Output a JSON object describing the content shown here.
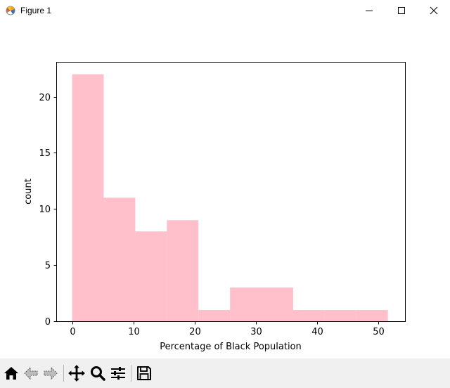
{
  "window": {
    "title": "Figure 1",
    "controls": [
      "minimize",
      "maximize",
      "close"
    ]
  },
  "toolbar": {
    "buttons": [
      {
        "name": "home",
        "icon": "home-icon"
      },
      {
        "name": "back",
        "icon": "arrow-left-icon"
      },
      {
        "name": "forward",
        "icon": "arrow-right-icon"
      },
      {
        "name": "pan",
        "icon": "move-icon"
      },
      {
        "name": "zoom",
        "icon": "magnifier-icon"
      },
      {
        "name": "configure-subplots",
        "icon": "sliders-icon"
      },
      {
        "name": "save",
        "icon": "floppy-disk-icon"
      }
    ]
  },
  "chart_data": {
    "type": "bar",
    "title": "",
    "xlabel": "Percentage of Black Population",
    "ylabel": "count",
    "xlim": [
      -2.6,
      54.4
    ],
    "ylim": [
      0,
      23.1
    ],
    "xticks": [
      0,
      10,
      20,
      30,
      40,
      50
    ],
    "yticks": [
      0,
      5,
      10,
      15,
      20
    ],
    "grid": false,
    "bar_color": "#ffc0cb",
    "bins": [
      {
        "x0": 0.0,
        "x1": 5.16,
        "count": 22
      },
      {
        "x0": 5.16,
        "x1": 10.32,
        "count": 11
      },
      {
        "x0": 10.32,
        "x1": 15.48,
        "count": 8
      },
      {
        "x0": 15.48,
        "x1": 20.64,
        "count": 9
      },
      {
        "x0": 20.64,
        "x1": 25.8,
        "count": 1
      },
      {
        "x0": 25.8,
        "x1": 30.96,
        "count": 3
      },
      {
        "x0": 30.96,
        "x1": 36.12,
        "count": 3
      },
      {
        "x0": 36.12,
        "x1": 41.28,
        "count": 1
      },
      {
        "x0": 41.28,
        "x1": 46.44,
        "count": 1
      },
      {
        "x0": 46.44,
        "x1": 51.6,
        "count": 1
      }
    ]
  }
}
